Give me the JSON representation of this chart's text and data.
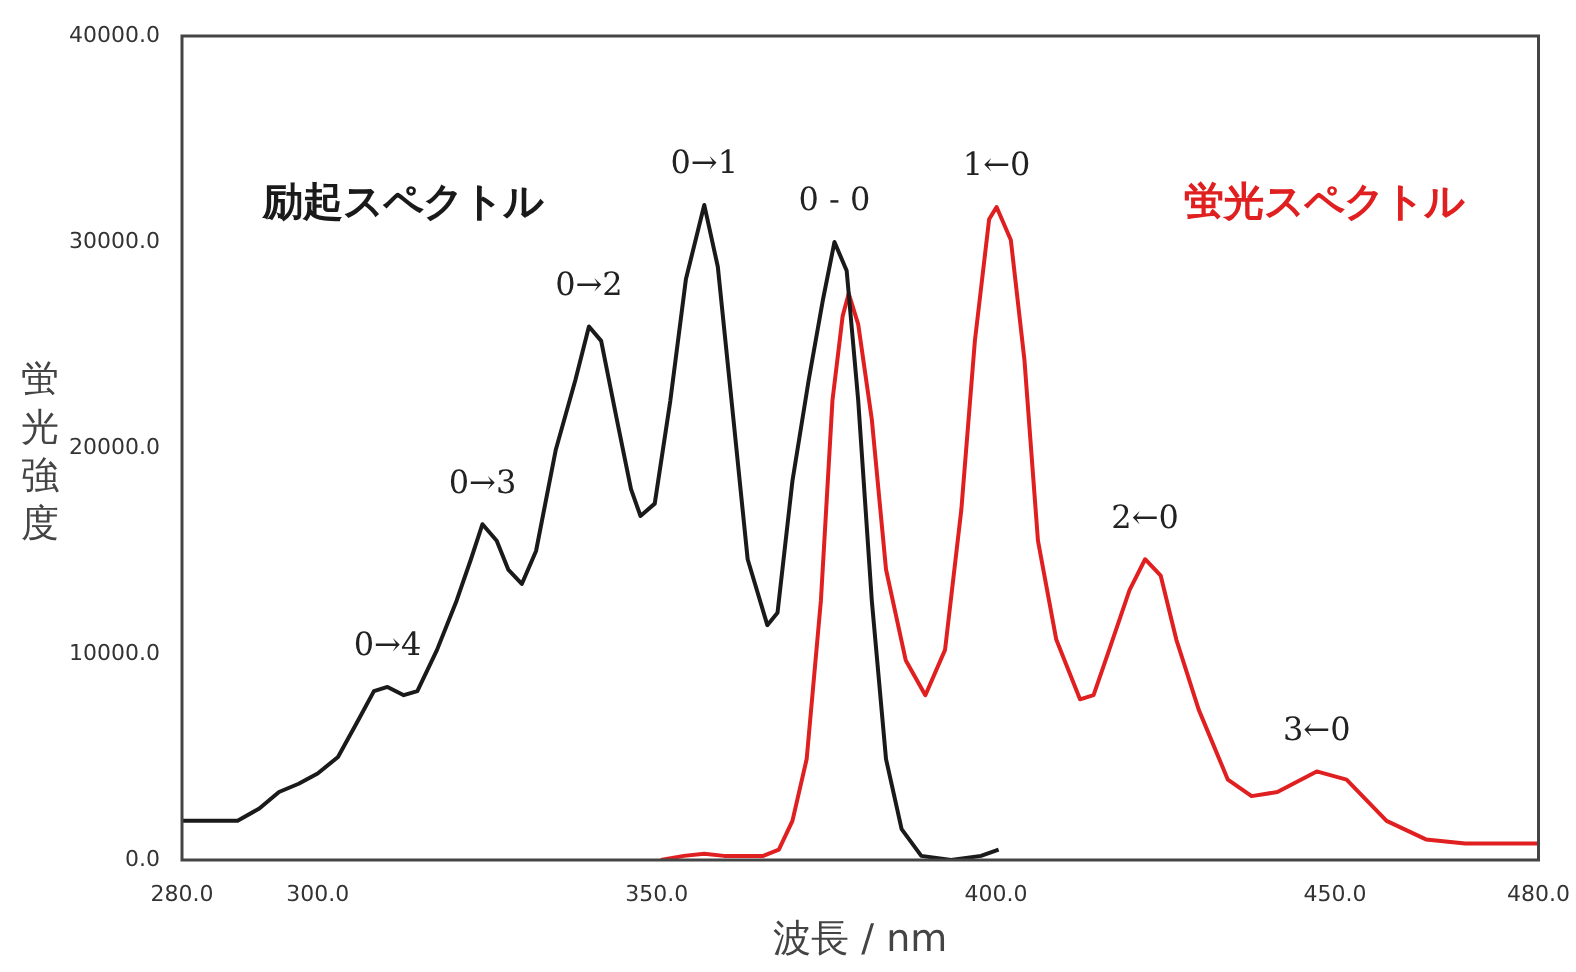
{
  "chart_data": {
    "type": "line",
    "xlabel": "波長 / nm",
    "ylabel": "蛍光強度",
    "xlim": [
      280,
      480
    ],
    "xticks": [
      {
        "value": 280,
        "label": "280.0"
      },
      {
        "value": 300,
        "label": "300.0"
      },
      {
        "value": 350,
        "label": "350.0"
      },
      {
        "value": 400,
        "label": "400.0"
      },
      {
        "value": 450,
        "label": "450.0"
      },
      {
        "value": 480,
        "label": "480.0"
      }
    ],
    "ylim": [
      0,
      40000
    ],
    "yticks": [
      {
        "value": 0,
        "label": "0.0"
      },
      {
        "value": 10000,
        "label": "10000.0"
      },
      {
        "value": 20000,
        "label": "20000.0"
      },
      {
        "value": 30000,
        "label": "30000.0"
      },
      {
        "value": 40000,
        "label": "40000.0"
      }
    ],
    "legend": false,
    "marker": "none",
    "line_style": "solid",
    "series": [
      {
        "name": "励起スペクトル",
        "color": "#1a1a1a",
        "x": [
          280,
          288.2,
          291.4,
          294.3,
          297.2,
          300,
          303,
          306,
          308.3,
          310.3,
          312.7,
          314.7,
          317.6,
          320.5,
          322.6,
          324.3,
          326.4,
          328.1,
          330.1,
          332.2,
          335.1,
          338,
          340,
          341.8,
          344.1,
          346.2,
          347.6,
          349.7,
          352,
          354.3,
          357,
          359,
          361.3,
          363.4,
          366.3,
          367.8,
          370,
          372.4,
          374.5,
          376.2,
          378,
          379.7,
          381.7,
          383.8,
          386.1,
          389,
          393.4,
          397.8,
          400.4
        ],
        "values": [
          1900,
          1900,
          2500,
          3300,
          3700,
          4200,
          5000,
          6800,
          8200,
          8400,
          8000,
          8200,
          10200,
          12600,
          14600,
          16300,
          15500,
          14100,
          13400,
          15000,
          19900,
          23300,
          25900,
          25200,
          21400,
          18000,
          16700,
          17300,
          22300,
          28200,
          31800,
          28800,
          21400,
          14600,
          11400,
          12000,
          18400,
          23300,
          27200,
          30000,
          28600,
          22300,
          12600,
          4900,
          1500,
          200,
          0,
          200,
          500
        ]
      },
      {
        "name": "蛍光スペクトル",
        "color": "#e02020",
        "x": [
          350.6,
          354,
          357,
          359.9,
          365.7,
          368,
          370,
          372.1,
          374.2,
          375.9,
          377.4,
          378.3,
          379.7,
          381.7,
          383.8,
          386.7,
          389.6,
          392.5,
          394.9,
          396.9,
          399,
          400.1,
          402.2,
          404.2,
          406.2,
          408.9,
          412.4,
          414.4,
          416.7,
          419.7,
          422,
          424.3,
          426.6,
          429.9,
          434.2,
          437.7,
          441.5,
          447.3,
          451.7,
          457.6,
          463.4,
          469.2,
          480
        ],
        "values": [
          0,
          200,
          300,
          200,
          200,
          500,
          1900,
          4900,
          12600,
          22300,
          26400,
          27500,
          26000,
          21400,
          14100,
          9700,
          8000,
          10200,
          17000,
          25200,
          31100,
          31700,
          30100,
          24300,
          15500,
          10700,
          7800,
          8000,
          10200,
          13100,
          14600,
          13800,
          10700,
          7300,
          3900,
          3100,
          3300,
          4300,
          3900,
          1900,
          1000,
          800,
          800
        ]
      }
    ],
    "annotations": [
      {
        "text": "0→4",
        "x": 310.3,
        "y": 8400
      },
      {
        "text": "0→3",
        "x": 324.3,
        "y": 16300
      },
      {
        "text": "0→2",
        "x": 340,
        "y": 25900
      },
      {
        "text": "0→1",
        "x": 357,
        "y": 31800
      },
      {
        "text": "0 - 0",
        "x": 376.2,
        "y": 30000
      },
      {
        "text": "1←0",
        "x": 400.1,
        "y": 31700
      },
      {
        "text": "2←0",
        "x": 422,
        "y": 14600
      },
      {
        "text": "3←0",
        "x": 447.3,
        "y": 4300
      }
    ]
  }
}
